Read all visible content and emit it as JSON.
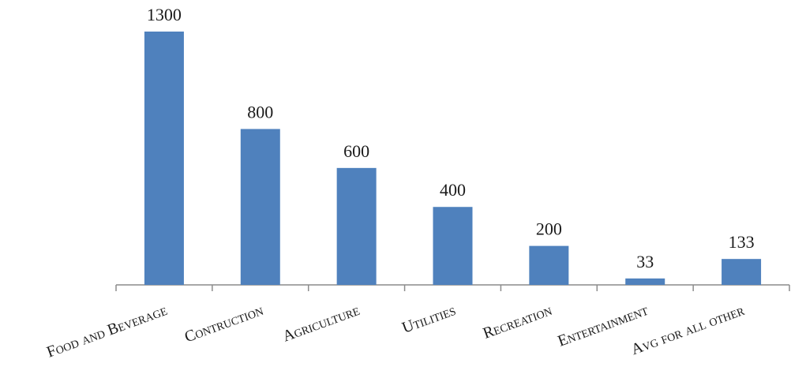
{
  "chart_data": {
    "type": "bar",
    "categories": [
      "Food and Beverage",
      "Contruction",
      "Agriculture",
      "Utilities",
      "Recreation",
      "Entertainment",
      "Avg for all other"
    ],
    "values": [
      1300,
      800,
      600,
      400,
      200,
      33,
      133
    ],
    "color": "#4f81bd"
  }
}
